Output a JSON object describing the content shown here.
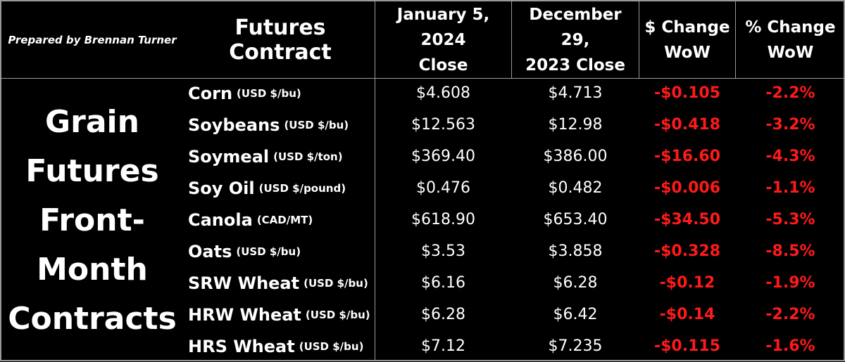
{
  "prepared_by": "Prepared by Brennan Turner",
  "headers": {
    "contract": "Futures Contract",
    "jan_line1": "January 5, 2024",
    "jan_line2": "Close",
    "dec_line1": "December 29,",
    "dec_line2": "2023 Close",
    "chg_line1": "$ Change",
    "chg_line2": "WoW",
    "pct_line1": "% Change",
    "pct_line2": "WoW"
  },
  "category_lines": [
    "Grain",
    "Futures",
    "Front-",
    "Month",
    "Contracts"
  ],
  "colors": {
    "background": "#000000",
    "text": "#ffffff",
    "negative": "#ff1a1a",
    "grid": "#9a9a9a"
  },
  "rows": [
    {
      "name": "Corn",
      "unit": "(USD $/bu)",
      "jan": "$4.608",
      "dec": "$4.713",
      "chg": "-$0.105",
      "pct": "-2.2%"
    },
    {
      "name": "Soybeans",
      "unit": "(USD $/bu)",
      "jan": "$12.563",
      "dec": "$12.98",
      "chg": "-$0.418",
      "pct": "-3.2%"
    },
    {
      "name": "Soymeal",
      "unit": "(USD $/ton)",
      "jan": "$369.40",
      "dec": "$386.00",
      "chg": "-$16.60",
      "pct": "-4.3%"
    },
    {
      "name": "Soy Oil",
      "unit": "(USD $/pound)",
      "jan": "$0.476",
      "dec": "$0.482",
      "chg": "-$0.006",
      "pct": "-1.1%"
    },
    {
      "name": "Canola",
      "unit": "(CAD/MT)",
      "jan": "$618.90",
      "dec": "$653.40",
      "chg": "-$34.50",
      "pct": "-5.3%"
    },
    {
      "name": "Oats",
      "unit": "(USD $/bu)",
      "jan": "$3.53",
      "dec": "$3.858",
      "chg": "-$0.328",
      "pct": "-8.5%"
    },
    {
      "name": "SRW Wheat",
      "unit": "(USD $/bu)",
      "jan": "$6.16",
      "dec": "$6.28",
      "chg": "-$0.12",
      "pct": "-1.9%"
    },
    {
      "name": "HRW Wheat",
      "unit": "(USD $/bu)",
      "jan": "$6.28",
      "dec": "$6.42",
      "chg": "-$0.14",
      "pct": "-2.2%"
    },
    {
      "name": "HRS Wheat",
      "unit": "(USD $/bu)",
      "jan": "$7.12",
      "dec": "$7.235",
      "chg": "-$0.115",
      "pct": "-1.6%"
    }
  ]
}
